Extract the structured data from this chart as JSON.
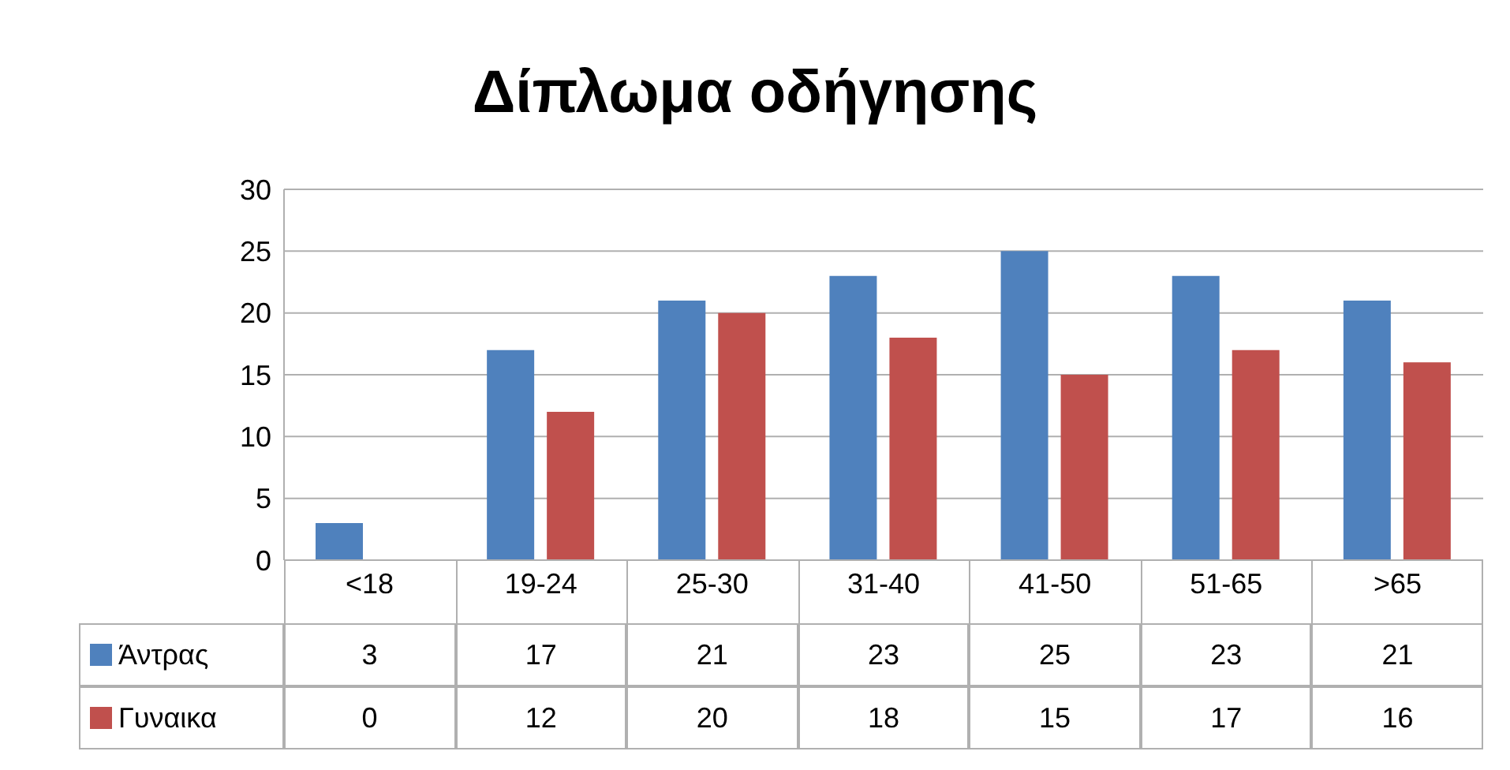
{
  "chart_data": {
    "type": "bar",
    "title": "Δίπλωμα οδήγησης",
    "categories": [
      "<18",
      "19-24",
      "25-30",
      "31-40",
      "41-50",
      "51-65",
      ">65"
    ],
    "series": [
      {
        "name": "Άντρας",
        "color": "#4f81bd",
        "values": [
          3,
          17,
          21,
          23,
          25,
          23,
          21
        ]
      },
      {
        "name": "Γυναικα",
        "color": "#c0504d",
        "values": [
          0,
          12,
          20,
          18,
          15,
          17,
          16
        ]
      }
    ],
    "ylim": [
      0,
      30
    ],
    "yticks": [
      0,
      5,
      10,
      15,
      20,
      25,
      30
    ],
    "grid": "y",
    "legend": "bottom",
    "data_labels": true
  }
}
